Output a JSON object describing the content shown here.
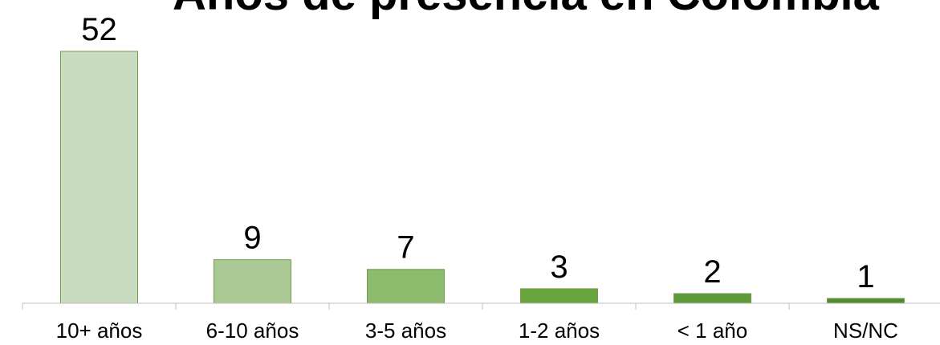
{
  "chart_data": {
    "type": "bar",
    "title": "Años de presencia en Colombia",
    "categories": [
      "10+ años",
      "6-10 años",
      "3-5 años",
      "1-2 años",
      "< 1 año",
      "NS/NC"
    ],
    "values": [
      52,
      9,
      7,
      3,
      2,
      1
    ],
    "colors": [
      "#c9dcc0",
      "#abc995",
      "#8cbb6d",
      "#6aa43e",
      "#5f9a38",
      "#558b2f"
    ],
    "ylim": [
      0,
      52
    ]
  }
}
